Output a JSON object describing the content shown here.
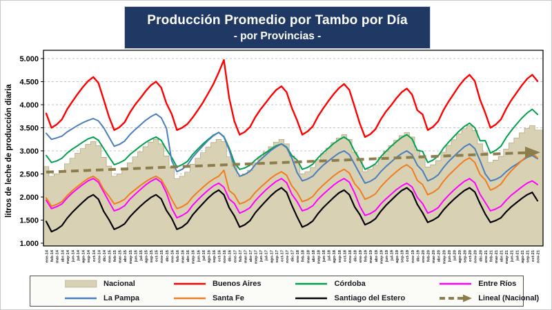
{
  "title": {
    "line1": "Producción Promedio por Tambo por Día",
    "line2": "- por Provincias -"
  },
  "colors": {
    "title_bg": "#1F3864",
    "title_text": "#FFFFFF",
    "plot_border": "#000000",
    "gridline": "#C0C0C0",
    "legend_border": "#4D4D4D",
    "nacional_area": "#D8D1B4",
    "buenos_aires": "#FF0000",
    "cordoba": "#00A04B",
    "entre_rios": "#FF00FF",
    "la_pampa": "#4A7EBB",
    "santa_fe": "#F07C20",
    "santiago_del_estero": "#000000",
    "lineal": "#8C7E4C"
  },
  "y_axis": {
    "title": "litros de leche de producción diaria",
    "min": 1000,
    "max": 5000,
    "step": 500,
    "ticks": [
      "1.000",
      "1.500",
      "2.000",
      "2.500",
      "3.000",
      "3.500",
      "4.000",
      "4.500",
      "5.000"
    ]
  },
  "chart_data": {
    "type": "area",
    "note": "stepped area for Nacional plus province line series and linear trend, monthly ene-14 to nov-21, values in litros/tambo/día",
    "ylim": [
      1000,
      5000
    ],
    "x": [
      "ene-14",
      "feb-14",
      "mar-14",
      "abr-14",
      "may-14",
      "jun-14",
      "jul-14",
      "ago-14",
      "sep-14",
      "oct-14",
      "nov-14",
      "dic-14",
      "ene-15",
      "feb-15",
      "mar-15",
      "abr-15",
      "may-15",
      "jun-15",
      "jul-15",
      "ago-15",
      "sep-15",
      "oct-15",
      "nov-15",
      "dic-15",
      "ene-16",
      "feb-16",
      "mar-16",
      "abr-16",
      "may-16",
      "jun-16",
      "jul-16",
      "ago-16",
      "sep-16",
      "oct-16",
      "nov-16",
      "dic-16",
      "ene-17",
      "feb-17",
      "mar-17",
      "abr-17",
      "may-17",
      "jun-17",
      "jul-17",
      "ago-17",
      "sep-17",
      "oct-17",
      "nov-17",
      "dic-17",
      "ene-18",
      "feb-18",
      "mar-18",
      "abr-18",
      "may-18",
      "jun-18",
      "jul-18",
      "ago-18",
      "sep-18",
      "oct-18",
      "nov-18",
      "dic-18",
      "ene-19",
      "feb-19",
      "mar-19",
      "abr-19",
      "may-19",
      "jun-19",
      "jul-19",
      "ago-19",
      "sep-19",
      "oct-19",
      "nov-19",
      "dic-19",
      "ene-20",
      "feb-20",
      "mar-20",
      "abr-20",
      "may-20",
      "jun-20",
      "jul-20",
      "ago-20",
      "sep-20",
      "oct-20",
      "nov-20",
      "dic-20",
      "ene-21",
      "feb-21",
      "mar-21",
      "abr-21",
      "may-21",
      "jun-21",
      "jul-21",
      "ago-21",
      "sep-21",
      "oct-21",
      "nov-21"
    ],
    "series": [
      {
        "name": "Nacional",
        "type": "area",
        "color": "#D8D1B4",
        "values": [
          2660,
          2450,
          2500,
          2570,
          2720,
          2840,
          2950,
          3050,
          3140,
          3200,
          3110,
          2860,
          2670,
          2450,
          2500,
          2580,
          2740,
          2870,
          2980,
          3090,
          3190,
          3250,
          3150,
          2890,
          2640,
          2400,
          2450,
          2540,
          2710,
          2840,
          2960,
          3080,
          3180,
          3250,
          3200,
          2870,
          2670,
          2450,
          2500,
          2580,
          2740,
          2870,
          2980,
          3090,
          3190,
          3250,
          3150,
          2890,
          2740,
          2500,
          2550,
          2640,
          2810,
          2940,
          3060,
          3180,
          3280,
          3350,
          3250,
          2970,
          2790,
          2550,
          2600,
          2690,
          2860,
          2990,
          3110,
          3230,
          3330,
          3400,
          3300,
          3020,
          2900,
          2650,
          2700,
          2790,
          2970,
          3120,
          3240,
          3370,
          3480,
          3550,
          3440,
          3150,
          2970,
          2750,
          2800,
          2880,
          3040,
          3170,
          3280,
          3390,
          3490,
          3550,
          3450
        ]
      },
      {
        "name": "Buenos Aires",
        "type": "line",
        "color": "#FF0000",
        "values": [
          3810,
          3500,
          3570,
          3680,
          3900,
          4070,
          4230,
          4380,
          4510,
          4600,
          4470,
          4110,
          3740,
          3450,
          3510,
          3620,
          3830,
          4000,
          4140,
          4290,
          4420,
          4500,
          4370,
          4030,
          3800,
          3450,
          3500,
          3580,
          3720,
          3880,
          4050,
          4250,
          4450,
          4700,
          4970,
          4150,
          3640,
          3350,
          3410,
          3520,
          3730,
          3900,
          4040,
          4190,
          4320,
          4400,
          4270,
          3930,
          3660,
          3350,
          3420,
          3530,
          3750,
          3920,
          4080,
          4230,
          4360,
          4450,
          4320,
          3960,
          3590,
          3300,
          3360,
          3470,
          3680,
          3850,
          3990,
          4140,
          4270,
          4350,
          4220,
          3880,
          3790,
          3450,
          3520,
          3640,
          3880,
          4070,
          4240,
          4410,
          4550,
          4650,
          4510,
          4110,
          3820,
          3500,
          3570,
          3680,
          3910,
          4100,
          4260,
          4420,
          4560,
          4650,
          4510
        ]
      },
      {
        "name": "Córdoba",
        "type": "line",
        "color": "#00A04B",
        "values": [
          2900,
          2750,
          2780,
          2840,
          2950,
          3040,
          3110,
          3190,
          3260,
          3300,
          3230,
          3050,
          2870,
          2700,
          2740,
          2800,
          2920,
          3010,
          3100,
          3180,
          3250,
          3300,
          3230,
          3030,
          2860,
          2650,
          2700,
          2770,
          2920,
          3040,
          3150,
          3250,
          3340,
          3400,
          3310,
          3060,
          2750,
          2600,
          2630,
          2690,
          2800,
          2890,
          2960,
          3040,
          3110,
          3150,
          3080,
          2900,
          2800,
          2600,
          2640,
          2710,
          2850,
          2960,
          3060,
          3160,
          3240,
          3300,
          3220,
          2990,
          2810,
          2600,
          2650,
          2720,
          2870,
          2990,
          3100,
          3200,
          3290,
          3350,
          3260,
          3010,
          2990,
          2750,
          2800,
          2890,
          3060,
          3190,
          3310,
          3430,
          3530,
          3600,
          3500,
          3220,
          3220,
          2950,
          3010,
          3100,
          3290,
          3440,
          3580,
          3710,
          3820,
          3900,
          3790
        ]
      },
      {
        "name": "Entre Ríos",
        "type": "line",
        "color": "#FF00FF",
        "values": [
          1930,
          1750,
          1790,
          1850,
          1980,
          2090,
          2180,
          2270,
          2350,
          2400,
          2320,
          2110,
          1900,
          1700,
          1740,
          1810,
          1950,
          2060,
          2160,
          2260,
          2340,
          2400,
          2320,
          2090,
          1760,
          1550,
          1600,
          1670,
          1820,
          1940,
          2050,
          2150,
          2240,
          2300,
          2210,
          1960,
          1860,
          1650,
          1700,
          1770,
          1920,
          2040,
          2150,
          2250,
          2340,
          2400,
          2310,
          2060,
          1900,
          1700,
          1740,
          1810,
          1950,
          2060,
          2160,
          2260,
          2340,
          2400,
          2320,
          2090,
          1800,
          1600,
          1640,
          1710,
          1850,
          1960,
          2060,
          2160,
          2240,
          2300,
          2220,
          1990,
          1860,
          1650,
          1700,
          1770,
          1920,
          2040,
          2150,
          2250,
          2340,
          2400,
          2310,
          2060,
          1880,
          1700,
          1740,
          1800,
          1930,
          2040,
          2130,
          2220,
          2300,
          2350,
          2270
        ]
      },
      {
        "name": "La Pampa",
        "type": "line",
        "color": "#4A7EBB",
        "values": [
          3380,
          3250,
          3280,
          3320,
          3410,
          3480,
          3550,
          3610,
          3660,
          3700,
          3650,
          3500,
          3300,
          3100,
          3140,
          3210,
          3350,
          3460,
          3560,
          3660,
          3740,
          3800,
          3720,
          3490,
          2790,
          2550,
          2600,
          2690,
          2860,
          2990,
          3110,
          3230,
          3330,
          3400,
          3300,
          3020,
          2650,
          2450,
          2490,
          2560,
          2700,
          2810,
          2910,
          3010,
          3090,
          3150,
          3070,
          2840,
          2530,
          2350,
          2390,
          2450,
          2580,
          2690,
          2780,
          2870,
          2950,
          3000,
          2920,
          2710,
          2500,
          2300,
          2340,
          2410,
          2550,
          2660,
          2760,
          2860,
          2940,
          3000,
          2920,
          2690,
          2570,
          2350,
          2400,
          2480,
          2640,
          2770,
          2880,
          2990,
          3090,
          3150,
          3050,
          2790,
          2500,
          2350,
          2380,
          2440,
          2550,
          2640,
          2710,
          2790,
          2860,
          2900,
          2830
        ]
      },
      {
        "name": "Santa Fe",
        "type": "line",
        "color": "#F07C20",
        "values": [
          1980,
          1800,
          1840,
          1900,
          2030,
          2140,
          2230,
          2320,
          2400,
          2450,
          2370,
          2160,
          2020,
          1850,
          1890,
          1950,
          2070,
          2160,
          2250,
          2330,
          2400,
          2450,
          2380,
          2180,
          1950,
          1750,
          1790,
          1860,
          2000,
          2110,
          2210,
          2310,
          2390,
          2450,
          2580,
          2140,
          2050,
          1850,
          1890,
          1960,
          2100,
          2210,
          2310,
          2410,
          2490,
          2550,
          2470,
          2240,
          2100,
          1900,
          1940,
          2010,
          2150,
          2260,
          2360,
          2460,
          2540,
          2600,
          2520,
          2290,
          2160,
          1950,
          2000,
          2070,
          2220,
          2340,
          2450,
          2550,
          2640,
          2700,
          2610,
          2360,
          2270,
          2050,
          2100,
          2180,
          2340,
          2470,
          2580,
          2690,
          2790,
          2850,
          2750,
          2490,
          2370,
          2150,
          2200,
          2280,
          2440,
          2570,
          2680,
          2790,
          2890,
          2950,
          2850
        ]
      },
      {
        "name": "Santiago del Estero",
        "type": "line",
        "color": "#000000",
        "values": [
          1470,
          1250,
          1300,
          1380,
          1540,
          1670,
          1780,
          1890,
          1990,
          2050,
          1950,
          1690,
          1510,
          1300,
          1350,
          1420,
          1570,
          1690,
          1800,
          1900,
          1990,
          2050,
          1960,
          1710,
          1540,
          1300,
          1350,
          1440,
          1610,
          1740,
          1860,
          1980,
          2080,
          2150,
          2050,
          1770,
          1590,
          1350,
          1400,
          1490,
          1660,
          1790,
          1910,
          2030,
          2130,
          2200,
          2100,
          1820,
          1570,
          1350,
          1400,
          1480,
          1640,
          1770,
          1880,
          1990,
          2090,
          2150,
          2050,
          1790,
          1620,
          1400,
          1450,
          1530,
          1690,
          1820,
          1930,
          2040,
          2140,
          2200,
          2100,
          1840,
          1660,
          1450,
          1500,
          1570,
          1720,
          1840,
          1950,
          2050,
          2140,
          2200,
          2110,
          1860,
          1630,
          1450,
          1490,
          1550,
          1680,
          1790,
          1880,
          1970,
          2050,
          2100,
          1920
        ]
      },
      {
        "name": "Lineal (Nacional)",
        "type": "trend",
        "color": "#8C7E4C",
        "values": [
          2540,
          2970
        ]
      }
    ],
    "legend": {
      "position": "bottom",
      "rows": [
        [
          "Nacional",
          "Buenos Aires",
          "Córdoba",
          "Entre Ríos"
        ],
        [
          "La Pampa",
          "Santa Fe",
          "Santiago del Estero",
          "Lineal (Nacional)"
        ]
      ]
    },
    "grid": "horizontal-dashed"
  }
}
